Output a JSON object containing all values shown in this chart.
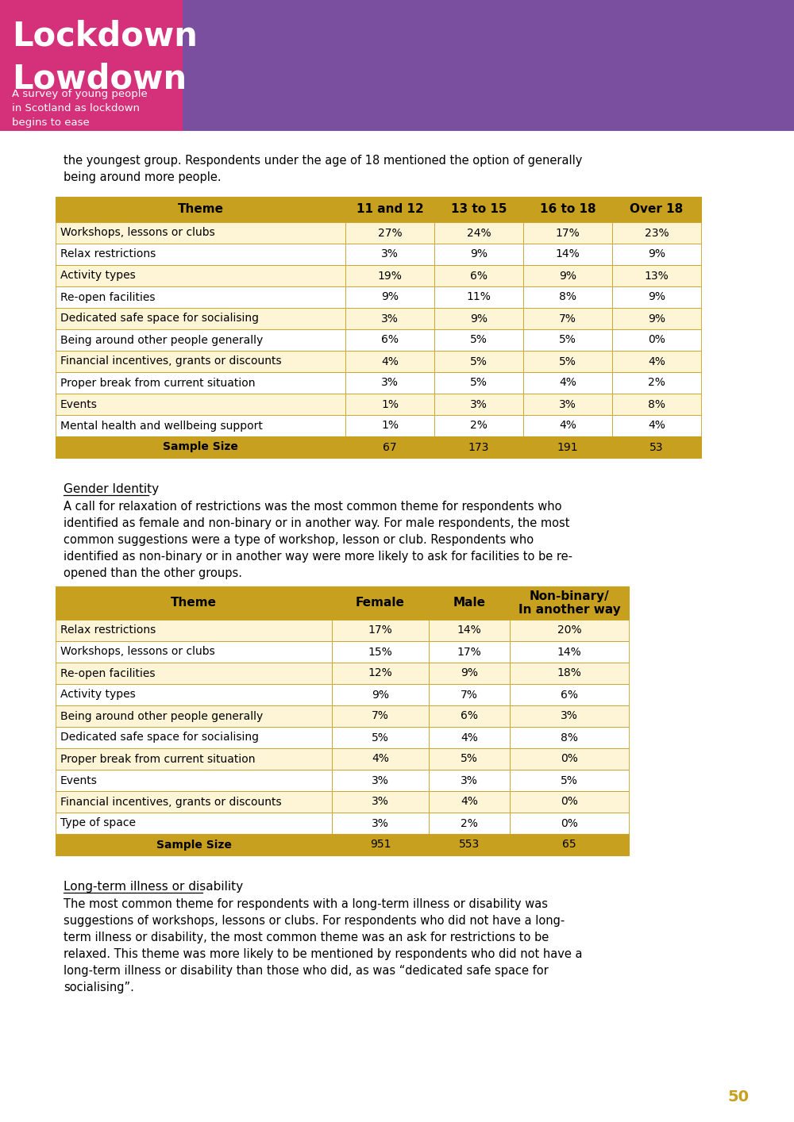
{
  "page_bg": "#ffffff",
  "header_bg": "#7b4fa0",
  "header_title1": "Lockdown",
  "header_title2": "Lowdown",
  "header_subtitle": "A survey of young people\nin Scotland as lockdown\nbegins to ease",
  "header_title_color": "#ffffff",
  "header_subtitle_color": "#ffffff",
  "header_title_bg": "#d4317a",
  "intro_text1": "the youngest group. Respondents under the age of 18 mentioned the option of generally\nbeing around more people.",
  "table1_header": [
    "Theme",
    "11 and 12",
    "13 to 15",
    "16 to 18",
    "Over 18"
  ],
  "table1_header_bg": "#c8a020",
  "table1_header_color": "#000000",
  "table1_rows": [
    [
      "Workshops, lessons or clubs",
      "27%",
      "24%",
      "17%",
      "23%"
    ],
    [
      "Relax restrictions",
      "3%",
      "9%",
      "14%",
      "9%"
    ],
    [
      "Activity types",
      "19%",
      "6%",
      "9%",
      "13%"
    ],
    [
      "Re-open facilities",
      "9%",
      "11%",
      "8%",
      "9%"
    ],
    [
      "Dedicated safe space for socialising",
      "3%",
      "9%",
      "7%",
      "9%"
    ],
    [
      "Being around other people generally",
      "6%",
      "5%",
      "5%",
      "0%"
    ],
    [
      "Financial incentives, grants or discounts",
      "4%",
      "5%",
      "5%",
      "4%"
    ],
    [
      "Proper break from current situation",
      "3%",
      "5%",
      "4%",
      "2%"
    ],
    [
      "Events",
      "1%",
      "3%",
      "3%",
      "8%"
    ],
    [
      "Mental health and wellbeing support",
      "1%",
      "2%",
      "4%",
      "4%"
    ]
  ],
  "table1_footer": [
    "Sample Size",
    "67",
    "173",
    "191",
    "53"
  ],
  "table1_row_even_bg": "#fdf5d6",
  "table1_row_odd_bg": "#ffffff",
  "table1_footer_bg": "#c8a020",
  "table1_border_color": "#c8a020",
  "section2_title": "Gender Identity",
  "section2_text": "A call for relaxation of restrictions was the most common theme for respondents who\nidentified as female and non-binary or in another way. For male respondents, the most\ncommon suggestions were a type of workshop, lesson or club. Respondents who\nidentified as non-binary or in another way were more likely to ask for facilities to be re-\nopened than the other groups.",
  "table2_header": [
    "Theme",
    "Female",
    "Male",
    "Non-binary/\nIn another way"
  ],
  "table2_header_bg": "#c8a020",
  "table2_header_color": "#000000",
  "table2_rows": [
    [
      "Relax restrictions",
      "17%",
      "14%",
      "20%"
    ],
    [
      "Workshops, lessons or clubs",
      "15%",
      "17%",
      "14%"
    ],
    [
      "Re-open facilities",
      "12%",
      "9%",
      "18%"
    ],
    [
      "Activity types",
      "9%",
      "7%",
      "6%"
    ],
    [
      "Being around other people generally",
      "7%",
      "6%",
      "3%"
    ],
    [
      "Dedicated safe space for socialising",
      "5%",
      "4%",
      "8%"
    ],
    [
      "Proper break from current situation",
      "4%",
      "5%",
      "0%"
    ],
    [
      "Events",
      "3%",
      "3%",
      "5%"
    ],
    [
      "Financial incentives, grants or discounts",
      "3%",
      "4%",
      "0%"
    ],
    [
      "Type of space",
      "3%",
      "2%",
      "0%"
    ]
  ],
  "table2_footer": [
    "Sample Size",
    "951",
    "553",
    "65"
  ],
  "section3_title": "Long-term illness or disability",
  "section3_text": "The most common theme for respondents with a long-term illness or disability was\nsuggestions of workshops, lessons or clubs. For respondents who did not have a long-\nterm illness or disability, the most common theme was an ask for restrictions to be\nrelaxed. This theme was more likely to be mentioned by respondents who did not have a\nlong-term illness or disability than those who did, as was “dedicated safe space for\nsocialising”.",
  "page_number": "50",
  "page_number_color": "#c8a020"
}
